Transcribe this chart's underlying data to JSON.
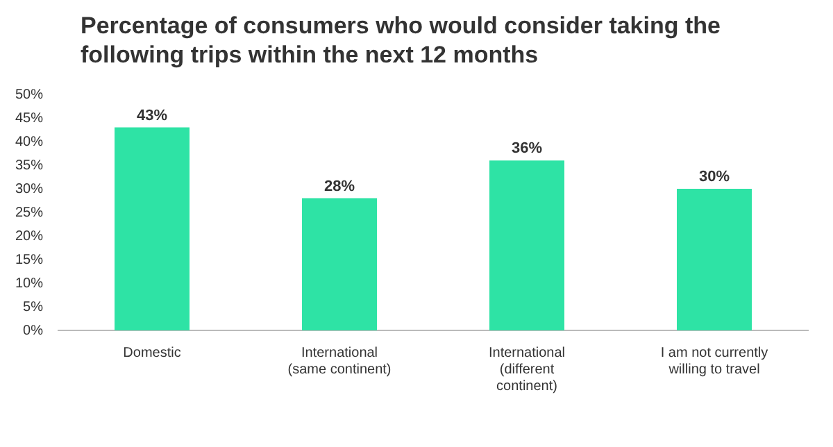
{
  "chart_data": {
    "type": "bar",
    "title": "Percentage of consumers who would consider taking the following trips within the next 12 months",
    "categories": [
      "Domestic",
      "International (same continent)",
      "International (different continent)",
      "I am not currently willing to travel"
    ],
    "values": [
      43,
      28,
      36,
      30
    ],
    "value_labels": [
      "43%",
      "28%",
      "36%",
      "30%"
    ],
    "color": "#2ee3a5",
    "ylim": [
      0,
      50
    ],
    "yticks": [
      {
        "value": 0,
        "label": "0%"
      },
      {
        "value": 5,
        "label": "5%"
      },
      {
        "value": 10,
        "label": "10%"
      },
      {
        "value": 15,
        "label": "15%"
      },
      {
        "value": 20,
        "label": "20%"
      },
      {
        "value": 25,
        "label": "25%"
      },
      {
        "value": 30,
        "label": "30%"
      },
      {
        "value": 35,
        "label": "35%"
      },
      {
        "value": 40,
        "label": "40%"
      },
      {
        "value": 45,
        "label": "45%"
      },
      {
        "value": 50,
        "label": "50%"
      }
    ],
    "grid": false,
    "legend": false
  }
}
